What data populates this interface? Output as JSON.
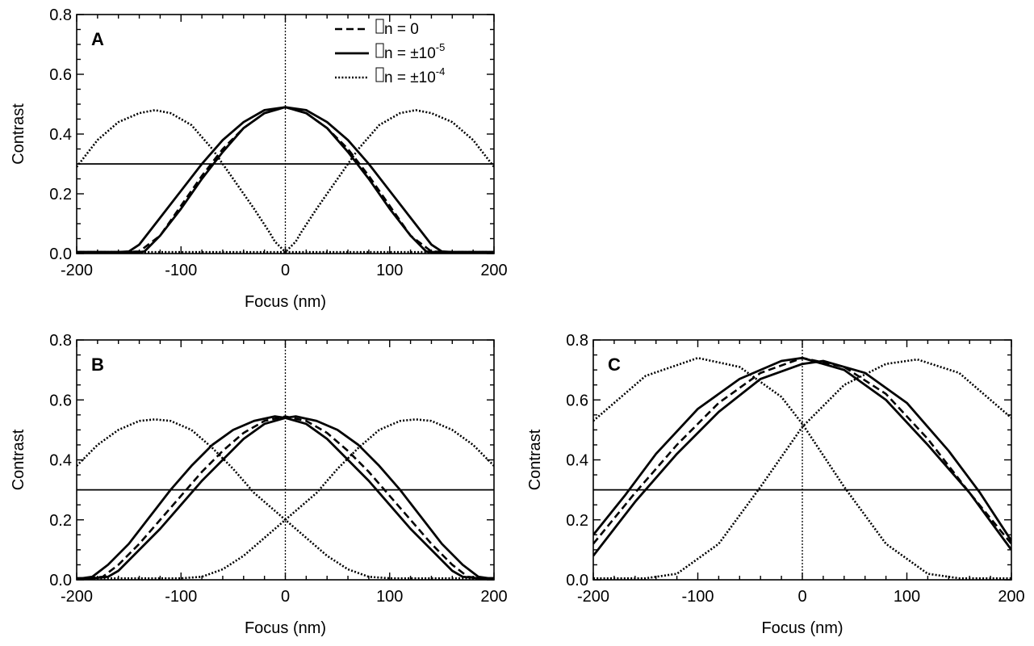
{
  "chart_data": [
    {
      "type": "line",
      "panel_label": "A",
      "xlabel": "Focus (nm)",
      "ylabel": "Contrast",
      "xlim": [
        -200,
        200
      ],
      "ylim": [
        0.0,
        0.8
      ],
      "xticks": [
        -200,
        -100,
        0,
        100,
        200
      ],
      "xtick_labels": [
        "-200",
        "-100",
        "0",
        "100",
        "200"
      ],
      "yticks": [
        0.0,
        0.2,
        0.4,
        0.6,
        0.8
      ],
      "ytick_labels": [
        "0.0",
        "0.2",
        "0.4",
        "0.6",
        "0.8"
      ],
      "reference_lines": {
        "horizontal_y": 0.3,
        "vertical_x": 0
      },
      "legend": {
        "placement": "top-center",
        "entries": [
          {
            "style": "dashed",
            "prefix": "n = ",
            "value": "0",
            "exponent": ""
          },
          {
            "style": "solid",
            "prefix": "n = ",
            "value": "±10",
            "exponent": "-5"
          },
          {
            "style": "dotted",
            "prefix": "n = ",
            "value": "±10",
            "exponent": "-4"
          }
        ]
      },
      "series": [
        {
          "style": "dashed",
          "x": [
            -200,
            -160,
            -140,
            -120,
            -100,
            -80,
            -60,
            -40,
            -20,
            0,
            20,
            40,
            60,
            80,
            100,
            120,
            140,
            160,
            200
          ],
          "y": [
            0.005,
            0.005,
            0.007,
            0.06,
            0.16,
            0.26,
            0.35,
            0.42,
            0.47,
            0.49,
            0.47,
            0.42,
            0.35,
            0.26,
            0.16,
            0.06,
            0.007,
            0.005,
            0.005
          ]
        },
        {
          "style": "solid",
          "x": [
            -200,
            -160,
            -150,
            -140,
            -120,
            -100,
            -80,
            -60,
            -40,
            -20,
            0,
            20,
            40,
            60,
            80,
            100,
            120,
            135,
            140,
            200
          ],
          "y": [
            0.005,
            0.005,
            0.007,
            0.03,
            0.12,
            0.21,
            0.3,
            0.38,
            0.44,
            0.48,
            0.49,
            0.47,
            0.42,
            0.34,
            0.25,
            0.15,
            0.06,
            0.007,
            0.005,
            0.005
          ]
        },
        {
          "style": "solid",
          "x": [
            -200,
            -140,
            -135,
            -120,
            -100,
            -80,
            -60,
            -40,
            -20,
            0,
            20,
            40,
            60,
            80,
            100,
            120,
            140,
            150,
            160,
            200
          ],
          "y": [
            0.005,
            0.005,
            0.007,
            0.06,
            0.15,
            0.25,
            0.34,
            0.42,
            0.47,
            0.49,
            0.48,
            0.44,
            0.38,
            0.3,
            0.21,
            0.12,
            0.03,
            0.007,
            0.005,
            0.005
          ]
        },
        {
          "style": "dotted",
          "x": [
            -200,
            -180,
            -160,
            -140,
            -125,
            -110,
            -90,
            -70,
            -50,
            -30,
            -15,
            -10,
            0,
            20,
            60,
            100,
            200
          ],
          "y": [
            0.29,
            0.38,
            0.44,
            0.47,
            0.48,
            0.47,
            0.43,
            0.35,
            0.25,
            0.15,
            0.07,
            0.04,
            0.005,
            0.005,
            0.005,
            0.005,
            0.005
          ]
        },
        {
          "style": "dotted",
          "x": [
            -200,
            -100,
            -60,
            -20,
            0,
            10,
            15,
            30,
            50,
            70,
            90,
            110,
            125,
            140,
            160,
            180,
            200
          ],
          "y": [
            0.005,
            0.005,
            0.005,
            0.005,
            0.005,
            0.04,
            0.07,
            0.15,
            0.25,
            0.35,
            0.43,
            0.47,
            0.48,
            0.47,
            0.44,
            0.38,
            0.29
          ]
        }
      ]
    },
    {
      "type": "line",
      "panel_label": "B",
      "xlabel": "Focus (nm)",
      "ylabel": "Contrast",
      "xlim": [
        -200,
        200
      ],
      "ylim": [
        0.0,
        0.8
      ],
      "xticks": [
        -200,
        -100,
        0,
        100,
        200
      ],
      "xtick_labels": [
        "-200",
        "-100",
        "0",
        "100",
        "200"
      ],
      "yticks": [
        0.0,
        0.2,
        0.4,
        0.6,
        0.8
      ],
      "ytick_labels": [
        "0.0",
        "0.2",
        "0.4",
        "0.6",
        "0.8"
      ],
      "reference_lines": {
        "horizontal_y": 0.3,
        "vertical_x": 0
      },
      "series": [
        {
          "style": "dashed",
          "x": [
            -200,
            -190,
            -175,
            -160,
            -140,
            -120,
            -100,
            -80,
            -60,
            -40,
            -20,
            0,
            20,
            40,
            60,
            80,
            100,
            120,
            140,
            160,
            175,
            190,
            200
          ],
          "y": [
            0.005,
            0.005,
            0.01,
            0.05,
            0.12,
            0.2,
            0.28,
            0.36,
            0.43,
            0.49,
            0.53,
            0.545,
            0.53,
            0.49,
            0.43,
            0.36,
            0.28,
            0.2,
            0.12,
            0.05,
            0.01,
            0.005,
            0.005
          ]
        },
        {
          "style": "solid",
          "x": [
            -200,
            -195,
            -185,
            -170,
            -150,
            -130,
            -110,
            -90,
            -70,
            -50,
            -30,
            -10,
            0,
            20,
            40,
            60,
            80,
            100,
            120,
            140,
            160,
            170,
            185,
            200
          ],
          "y": [
            0.005,
            0.005,
            0.01,
            0.05,
            0.12,
            0.21,
            0.3,
            0.38,
            0.45,
            0.5,
            0.53,
            0.545,
            0.54,
            0.52,
            0.47,
            0.4,
            0.33,
            0.25,
            0.17,
            0.1,
            0.03,
            0.01,
            0.005,
            0.005
          ]
        },
        {
          "style": "solid",
          "x": [
            -200,
            -185,
            -170,
            -160,
            -140,
            -120,
            -100,
            -80,
            -60,
            -40,
            -20,
            0,
            10,
            30,
            50,
            70,
            90,
            110,
            130,
            150,
            170,
            185,
            195,
            200
          ],
          "y": [
            0.005,
            0.005,
            0.01,
            0.03,
            0.1,
            0.17,
            0.25,
            0.33,
            0.4,
            0.47,
            0.52,
            0.54,
            0.545,
            0.53,
            0.5,
            0.45,
            0.38,
            0.3,
            0.21,
            0.12,
            0.05,
            0.01,
            0.005,
            0.005
          ]
        },
        {
          "style": "dotted",
          "x": [
            -200,
            -180,
            -160,
            -140,
            -125,
            -110,
            -90,
            -70,
            -50,
            -30,
            -10,
            0,
            20,
            40,
            60,
            80,
            100,
            200
          ],
          "y": [
            0.38,
            0.45,
            0.5,
            0.53,
            0.535,
            0.53,
            0.5,
            0.44,
            0.37,
            0.29,
            0.23,
            0.2,
            0.14,
            0.08,
            0.035,
            0.01,
            0.005,
            0.005
          ]
        },
        {
          "style": "dotted",
          "x": [
            -200,
            -100,
            -80,
            -60,
            -40,
            -20,
            0,
            10,
            30,
            50,
            70,
            90,
            110,
            125,
            140,
            160,
            180,
            200
          ],
          "y": [
            0.005,
            0.005,
            0.01,
            0.035,
            0.08,
            0.14,
            0.2,
            0.23,
            0.29,
            0.37,
            0.44,
            0.5,
            0.53,
            0.535,
            0.53,
            0.5,
            0.45,
            0.38
          ]
        }
      ]
    },
    {
      "type": "line",
      "panel_label": "C",
      "xlabel": "Focus (nm)",
      "ylabel": "Contrast",
      "xlim": [
        -200,
        200
      ],
      "ylim": [
        0.0,
        0.8
      ],
      "xticks": [
        -200,
        -100,
        0,
        100,
        200
      ],
      "xtick_labels": [
        "-200",
        "-100",
        "0",
        "100",
        "200"
      ],
      "yticks": [
        0.0,
        0.2,
        0.4,
        0.6,
        0.8
      ],
      "ytick_labels": [
        "0.0",
        "0.2",
        "0.4",
        "0.6",
        "0.8"
      ],
      "reference_lines": {
        "horizontal_y": 0.3,
        "vertical_x": 0
      },
      "series": [
        {
          "style": "dashed",
          "x": [
            -200,
            -160,
            -120,
            -80,
            -40,
            0,
            40,
            80,
            120,
            160,
            200
          ],
          "y": [
            0.12,
            0.29,
            0.45,
            0.59,
            0.69,
            0.74,
            0.71,
            0.62,
            0.47,
            0.29,
            0.12
          ]
        },
        {
          "style": "solid",
          "x": [
            -200,
            -170,
            -140,
            -100,
            -60,
            -20,
            0,
            40,
            80,
            120,
            160,
            200
          ],
          "y": [
            0.15,
            0.28,
            0.42,
            0.57,
            0.67,
            0.73,
            0.74,
            0.7,
            0.6,
            0.45,
            0.29,
            0.1
          ]
        },
        {
          "style": "solid",
          "x": [
            -200,
            -160,
            -120,
            -80,
            -40,
            0,
            20,
            60,
            100,
            140,
            170,
            200
          ],
          "y": [
            0.08,
            0.26,
            0.42,
            0.56,
            0.67,
            0.72,
            0.73,
            0.69,
            0.59,
            0.43,
            0.29,
            0.13
          ]
        },
        {
          "style": "dotted",
          "x": [
            -200,
            -150,
            -100,
            -60,
            -20,
            0,
            40,
            80,
            120,
            150,
            200
          ],
          "y": [
            0.53,
            0.68,
            0.74,
            0.71,
            0.61,
            0.52,
            0.31,
            0.12,
            0.02,
            0.005,
            0.005
          ]
        },
        {
          "style": "dotted",
          "x": [
            -200,
            -150,
            -120,
            -80,
            -40,
            0,
            40,
            80,
            110,
            150,
            200
          ],
          "y": [
            0.005,
            0.005,
            0.02,
            0.12,
            0.31,
            0.51,
            0.65,
            0.72,
            0.735,
            0.69,
            0.54
          ]
        }
      ]
    }
  ]
}
